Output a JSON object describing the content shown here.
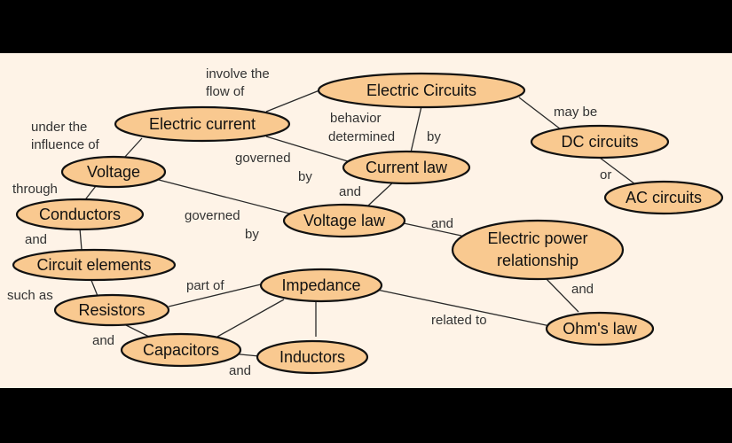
{
  "concept_map": {
    "nodes": {
      "electric_circuits": "Electric Circuits",
      "electric_current": "Electric current",
      "dc_circuits": "DC circuits",
      "ac_circuits": "AC circuits",
      "voltage": "Voltage",
      "current_law": "Current law",
      "conductors": "Conductors",
      "voltage_law": "Voltage law",
      "electric_power_line1": "Electric power",
      "electric_power_line2": "relationship",
      "circuit_elements": "Circuit elements",
      "impedance": "Impedance",
      "resistors": "Resistors",
      "ohms_law": "Ohm's law",
      "capacitors": "Capacitors",
      "inductors": "Inductors"
    },
    "links": {
      "involve_line1": "involve the",
      "involve_line2": "flow of",
      "under_line1": "under the",
      "under_line2": "influence of",
      "behavior_line1": "behavior",
      "behavior_line2": "determined",
      "by_current": "by",
      "may_be": "may be",
      "or": "or",
      "governed_current_1": "governed",
      "governed_current_2": "by",
      "and_current_voltage": "and",
      "through": "through",
      "governed_voltage_1": "governed",
      "governed_voltage_2": "by",
      "and_voltage_power": "and",
      "and_conductors": "and",
      "such_as": "such as",
      "part_of": "part of",
      "and_power_ohm": "and",
      "related_to": "related to",
      "and_resistors_capacitors": "and",
      "and_capacitors_inductors": "and"
    }
  }
}
